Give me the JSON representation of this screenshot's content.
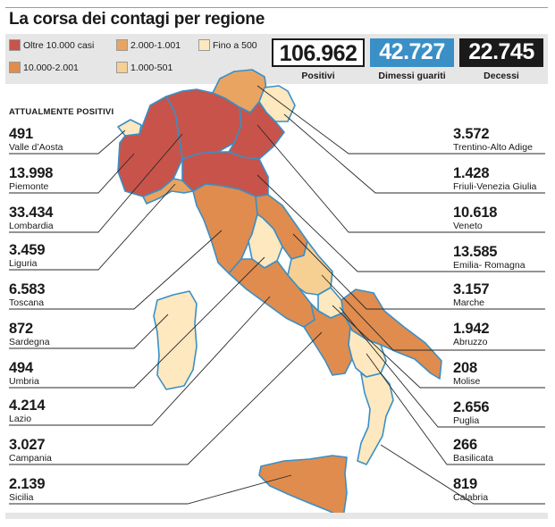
{
  "title": "La corsa dei contagi per regione",
  "legend": [
    {
      "label": "Oltre 10.000 casi",
      "color": "#c8534a"
    },
    {
      "label": "2.000-1.001",
      "color": "#e9a462"
    },
    {
      "label": "Fino a 500",
      "color": "#fde8bf"
    },
    {
      "label": "10.000-2.001",
      "color": "#e08c4e"
    },
    {
      "label": "1.000-501",
      "color": "#f6cf93"
    }
  ],
  "kpis": [
    {
      "value": "106.962",
      "label": "Positivi",
      "bg": "#ffffff",
      "fg": "#1a1a1a"
    },
    {
      "value": "42.727",
      "label": "Dimessi guariti",
      "bg": "#3a8fc6",
      "fg": "#ffffff"
    },
    {
      "value": "22.745",
      "label": "Decessi",
      "bg": "#1a1a1a",
      "fg": "#ffffff"
    }
  ],
  "section_title": "ATTUALMENTE POSITIVI",
  "left_regions": [
    {
      "value": "491",
      "name": "Valle d’Aosta"
    },
    {
      "value": "13.998",
      "name": "Piemonte"
    },
    {
      "value": "33.434",
      "name": "Lombardia"
    },
    {
      "value": "3.459",
      "name": "Liguria"
    },
    {
      "value": "6.583",
      "name": "Toscana"
    },
    {
      "value": "872",
      "name": "Sardegna"
    },
    {
      "value": "494",
      "name": "Umbria"
    },
    {
      "value": "4.214",
      "name": "Lazio"
    },
    {
      "value": "3.027",
      "name": "Campania"
    },
    {
      "value": "2.139",
      "name": "Sicilia"
    }
  ],
  "right_regions": [
    {
      "value": "3.572",
      "name": "Trentino-Alto Adige"
    },
    {
      "value": "1.428",
      "name": "Friuli-Venezia Giulia"
    },
    {
      "value": "10.618",
      "name": "Veneto"
    },
    {
      "value": "13.585",
      "name": "Emilia- Romagna"
    },
    {
      "value": "3.157",
      "name": "Marche"
    },
    {
      "value": "1.942",
      "name": "Abruzzo"
    },
    {
      "value": "208",
      "name": "Molise"
    },
    {
      "value": "2.656",
      "name": "Puglia"
    },
    {
      "value": "266",
      "name": "Basilicata"
    },
    {
      "value": "819",
      "name": "Calabria"
    }
  ],
  "colors": {
    "border_blue": "#3a8fc6",
    "leader_line": "#2a2a2a",
    "band_grey": "#e6e6e6"
  }
}
